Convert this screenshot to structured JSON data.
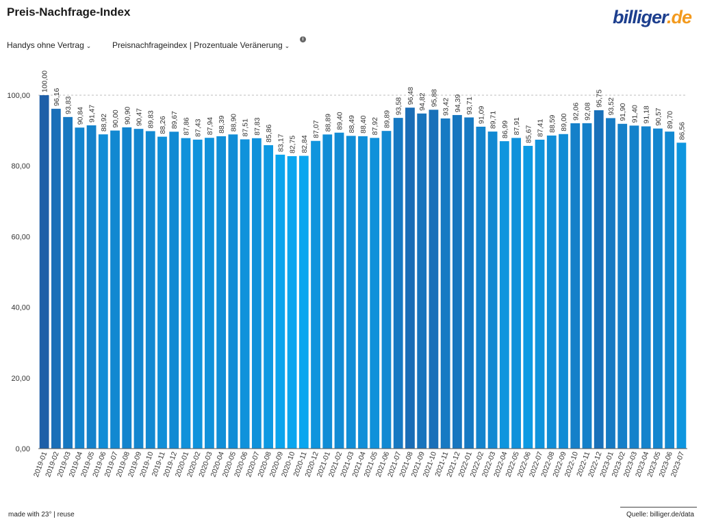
{
  "header": {
    "title": "Preis-Nachfrage-Index",
    "logo_main": "billiger",
    "logo_suffix": ".de"
  },
  "filters": {
    "category_label": "Handys ohne Vertrag",
    "metric_label": "Preisnachfrageindex | Prozentuale Veränerung",
    "info_badge": "i"
  },
  "footer": {
    "made_with": "made with 23° | reuse",
    "source": "Quelle: billiger.de/data"
  },
  "colors": {
    "bar_dark": "#1e5fa8",
    "bar_light": "#0aa6ef",
    "grid": "#bbbbbb",
    "axis": "#555555"
  },
  "chart_data": {
    "type": "bar",
    "title": "Preis-Nachfrage-Index",
    "xlabel": "",
    "ylabel": "",
    "ylim": [
      0,
      100
    ],
    "yticks": [
      "0,00",
      "20,00",
      "40,00",
      "60,00",
      "80,00",
      "100,00"
    ],
    "reference_line": 100,
    "categories": [
      "2019-01",
      "2019-02",
      "2019-03",
      "2019-04",
      "2019-05",
      "2019-06",
      "2019-07",
      "2019-08",
      "2019-09",
      "2019-10",
      "2019-11",
      "2019-12",
      "2020-01",
      "2020-02",
      "2020-03",
      "2020-04",
      "2020-05",
      "2020-06",
      "2020-07",
      "2020-08",
      "2020-09",
      "2020-10",
      "2020-11",
      "2020-12",
      "2021-01",
      "2021-02",
      "2021-03",
      "2021-04",
      "2021-05",
      "2021-06",
      "2021-07",
      "2021-08",
      "2021-09",
      "2021-10",
      "2021-11",
      "2021-12",
      "2022-01",
      "2022-02",
      "2022-03",
      "2022-04",
      "2022-05",
      "2022-06",
      "2022-07",
      "2022-08",
      "2022-09",
      "2022-10",
      "2022-11",
      "2022-12",
      "2023-01",
      "2023-02",
      "2023-03",
      "2023-04",
      "2023-05",
      "2023-06",
      "2023-07"
    ],
    "values": [
      100.0,
      96.16,
      93.83,
      90.84,
      91.47,
      88.92,
      90.0,
      90.9,
      90.47,
      89.83,
      88.26,
      89.67,
      87.86,
      87.43,
      87.94,
      88.39,
      88.9,
      87.51,
      87.83,
      85.86,
      83.17,
      82.75,
      82.84,
      87.07,
      88.89,
      89.4,
      88.49,
      88.4,
      87.92,
      89.89,
      93.58,
      96.48,
      94.82,
      95.88,
      93.42,
      94.39,
      93.71,
      91.09,
      89.71,
      86.99,
      87.91,
      85.67,
      87.41,
      88.59,
      89.0,
      92.06,
      92.08,
      95.75,
      93.52,
      91.9,
      91.4,
      91.18,
      90.57,
      89.7,
      86.56
    ],
    "value_labels": [
      "100,00",
      "96,16",
      "93,83",
      "90,84",
      "91,47",
      "88,92",
      "90,00",
      "90,90",
      "90,47",
      "89,83",
      "88,26",
      "89,67",
      "87,86",
      "87,43",
      "87,94",
      "88,39",
      "88,90",
      "87,51",
      "87,83",
      "85,86",
      "83,17",
      "82,75",
      "82,84",
      "87,07",
      "88,89",
      "89,40",
      "88,49",
      "88,40",
      "87,92",
      "89,89",
      "93,58",
      "96,48",
      "94,82",
      "95,88",
      "93,42",
      "94,39",
      "93,71",
      "91,09",
      "89,71",
      "86,99",
      "87,91",
      "85,67",
      "87,41",
      "88,59",
      "89,00",
      "92,06",
      "92,08",
      "95,75",
      "93,52",
      "91,90",
      "91,40",
      "91,18",
      "90,57",
      "89,70",
      "86,56"
    ]
  }
}
